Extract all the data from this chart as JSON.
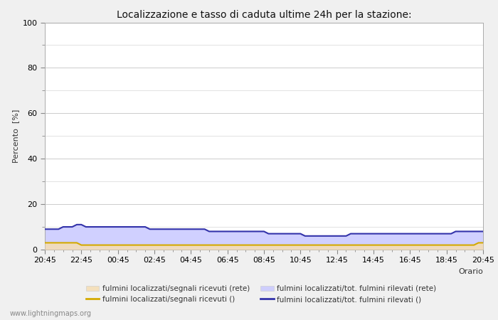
{
  "title": "Localizzazione e tasso di caduta ultime 24h per la stazione:",
  "ylabel": "Percento  [%]",
  "xlabel": "Orario",
  "xtick_labels": [
    "20:45",
    "22:45",
    "00:45",
    "02:45",
    "04:45",
    "06:45",
    "08:45",
    "10:45",
    "12:45",
    "14:45",
    "16:45",
    "18:45",
    "20:45"
  ],
  "ylim": [
    0,
    100
  ],
  "yticks_major": [
    0,
    20,
    40,
    60,
    80,
    100
  ],
  "yticks_minor": [
    10,
    30,
    50,
    70,
    90
  ],
  "background_color": "#f0f0f0",
  "plot_bg_color": "#ffffff",
  "grid_color": "#cccccc",
  "watermark": "www.lightningmaps.org",
  "legend": [
    {
      "label": "fulmini localizzati/segnali ricevuti (rete)",
      "type": "fill",
      "color": "#f5deb3",
      "alpha": 0.85
    },
    {
      "label": "fulmini localizzati/segnali ricevuti ()",
      "type": "line",
      "color": "#d4aa00",
      "lw": 1.5
    },
    {
      "label": "fulmini localizzati/tot. fulmini rilevati (rete)",
      "type": "fill",
      "color": "#c8c8ff",
      "alpha": 0.85
    },
    {
      "label": "fulmini localizzati/tot. fulmini rilevati ()",
      "type": "line",
      "color": "#3333aa",
      "lw": 1.5
    }
  ],
  "n_points": 97,
  "fill1_values_approx": [
    3,
    3,
    3,
    3,
    3,
    3,
    3,
    3,
    2,
    2,
    2,
    2,
    2,
    2,
    2,
    2,
    2,
    2,
    2,
    2,
    2,
    2,
    2,
    2,
    2,
    2,
    2,
    2,
    2,
    2,
    2,
    2,
    2,
    2,
    2,
    2,
    2,
    2,
    2,
    2,
    2,
    2,
    2,
    2,
    2,
    2,
    2,
    2,
    2,
    2,
    2,
    2,
    2,
    2,
    2,
    2,
    2,
    2,
    2,
    2,
    2,
    2,
    2,
    2,
    2,
    2,
    2,
    2,
    2,
    2,
    2,
    2,
    2,
    2,
    2,
    2,
    2,
    2,
    2,
    2,
    2,
    2,
    2,
    2,
    2,
    2,
    2,
    2,
    2,
    2,
    2,
    2,
    2,
    2,
    2,
    3,
    3
  ],
  "fill2_values_approx": [
    9,
    9,
    9,
    9,
    10,
    10,
    10,
    11,
    11,
    10,
    10,
    10,
    10,
    10,
    10,
    10,
    10,
    10,
    10,
    10,
    10,
    10,
    10,
    9,
    9,
    9,
    9,
    9,
    9,
    9,
    9,
    9,
    9,
    9,
    9,
    9,
    8,
    8,
    8,
    8,
    8,
    8,
    8,
    8,
    8,
    8,
    8,
    8,
    8,
    7,
    7,
    7,
    7,
    7,
    7,
    7,
    7,
    6,
    6,
    6,
    6,
    6,
    6,
    6,
    6,
    6,
    6,
    7,
    7,
    7,
    7,
    7,
    7,
    7,
    7,
    7,
    7,
    7,
    7,
    7,
    7,
    7,
    7,
    7,
    7,
    7,
    7,
    7,
    7,
    7,
    8,
    8,
    8,
    8,
    8,
    8,
    8
  ],
  "title_fontsize": 10,
  "label_fontsize": 8,
  "tick_fontsize": 8
}
